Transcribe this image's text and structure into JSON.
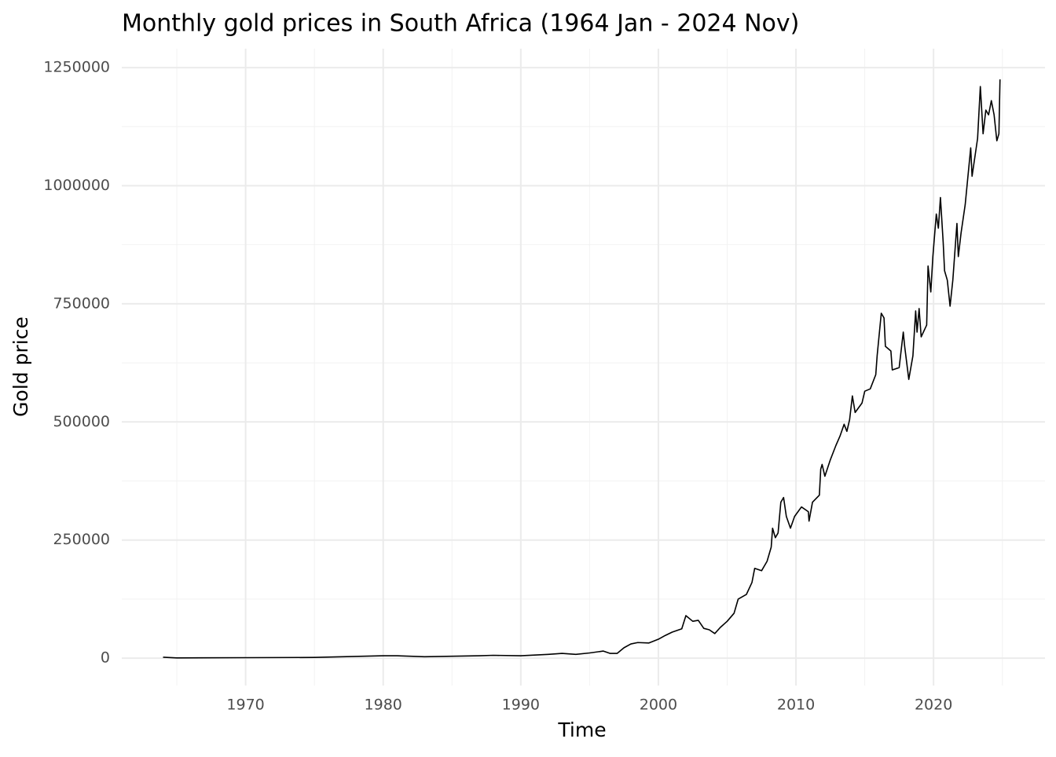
{
  "chart_data": {
    "type": "line",
    "title": "Monthly gold prices in South Africa (1964 Jan - 2024 Nov)",
    "xlabel": "Time",
    "ylabel": "Gold price",
    "x": [
      1964.0,
      1965,
      1970,
      1975,
      1980,
      1981,
      1983,
      1985,
      1987,
      1988,
      1990,
      1992,
      1993,
      1994,
      1995,
      1996,
      1996.5,
      1997,
      1997.5,
      1998,
      1998.5,
      1999.3,
      2000,
      2000.5,
      2001,
      2001.7,
      2002.0,
      2002.5,
      2002.9,
      2003.3,
      2003.7,
      2004.1,
      2004.5,
      2005.0,
      2005.5,
      2005.8,
      2006.4,
      2006.8,
      2007.0,
      2007.5,
      2007.9,
      2008.2,
      2008.3,
      2008.5,
      2008.7,
      2008.9,
      2009.1,
      2009.3,
      2009.6,
      2009.9,
      2010.4,
      2010.9,
      2010.95,
      2011.2,
      2011.7,
      2011.8,
      2011.9,
      2012.1,
      2012.5,
      2012.9,
      2013.2,
      2013.5,
      2013.7,
      2013.9,
      2014.1,
      2014.3,
      2014.8,
      2015.0,
      2015.4,
      2015.8,
      2015.9,
      2016.1,
      2016.2,
      2016.4,
      2016.5,
      2016.9,
      2017.0,
      2017.5,
      2017.8,
      2017.9,
      2018.2,
      2018.5,
      2018.7,
      2018.8,
      2018.95,
      2019.1,
      2019.5,
      2019.6,
      2019.8,
      2019.95,
      2020.2,
      2020.35,
      2020.5,
      2020.7,
      2020.8,
      2021.0,
      2021.2,
      2021.4,
      2021.7,
      2021.8,
      2022.0,
      2022.3,
      2022.7,
      2022.8,
      2023.2,
      2023.4,
      2023.6,
      2023.8,
      2024.0,
      2024.2,
      2024.4,
      2024.6,
      2024.75,
      2024.83
    ],
    "values": [
      2000,
      500,
      1000,
      1500,
      5000,
      5000,
      3000,
      4000,
      5000,
      6000,
      5000,
      8000,
      10000,
      8000,
      11000,
      15000,
      10000,
      10000,
      22000,
      30000,
      33000,
      32000,
      40000,
      48000,
      55000,
      62000,
      90000,
      78000,
      80000,
      63000,
      60000,
      52000,
      65000,
      78000,
      95000,
      125000,
      135000,
      160000,
      190000,
      185000,
      205000,
      235000,
      275000,
      255000,
      265000,
      330000,
      340000,
      300000,
      275000,
      300000,
      320000,
      310000,
      290000,
      330000,
      345000,
      400000,
      410000,
      385000,
      420000,
      450000,
      470000,
      495000,
      480000,
      505000,
      555000,
      520000,
      540000,
      565000,
      570000,
      600000,
      640000,
      700000,
      730000,
      720000,
      660000,
      650000,
      610000,
      615000,
      690000,
      660000,
      590000,
      640000,
      735000,
      690000,
      740000,
      680000,
      705000,
      830000,
      775000,
      850000,
      940000,
      910000,
      975000,
      880000,
      820000,
      800000,
      745000,
      800000,
      920000,
      850000,
      900000,
      960000,
      1080000,
      1020000,
      1100000,
      1210000,
      1110000,
      1160000,
      1150000,
      1180000,
      1150000,
      1095000,
      1110000,
      1225000
    ],
    "color": "#000000",
    "xlim": [
      1961.0,
      2028.1
    ],
    "xticks": [
      1970,
      1980,
      1990,
      2000,
      2010,
      2020
    ],
    "ylim": [
      -58000,
      1290000
    ],
    "yticks": [
      0,
      250000,
      500000,
      750000,
      1000000,
      1250000
    ],
    "grid": true
  }
}
